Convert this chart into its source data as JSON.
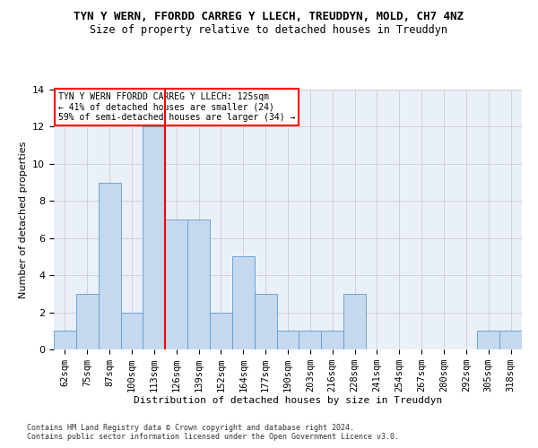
{
  "title": "TYN Y WERN, FFORDD CARREG Y LLECH, TREUDDYN, MOLD, CH7 4NZ",
  "subtitle": "Size of property relative to detached houses in Treuddyn",
  "xlabel": "Distribution of detached houses by size in Treuddyn",
  "ylabel": "Number of detached properties",
  "bar_labels": [
    "62sqm",
    "75sqm",
    "87sqm",
    "100sqm",
    "113sqm",
    "126sqm",
    "139sqm",
    "152sqm",
    "164sqm",
    "177sqm",
    "190sqm",
    "203sqm",
    "216sqm",
    "228sqm",
    "241sqm",
    "254sqm",
    "267sqm",
    "280sqm",
    "292sqm",
    "305sqm",
    "318sqm"
  ],
  "bar_values": [
    1,
    3,
    9,
    2,
    12,
    7,
    7,
    2,
    5,
    3,
    1,
    1,
    1,
    3,
    0,
    0,
    0,
    0,
    0,
    1,
    1
  ],
  "bar_color": "#c5d8ed",
  "bar_edge_color": "#5b9bd5",
  "red_line_x": 4.5,
  "annotation_title": "TYN Y WERN FFORDD CARREG Y LLECH: 125sqm",
  "annotation_line1": "← 41% of detached houses are smaller (24)",
  "annotation_line2": "59% of semi-detached houses are larger (34) →",
  "ylim": [
    0,
    14
  ],
  "yticks": [
    0,
    2,
    4,
    6,
    8,
    10,
    12,
    14
  ],
  "footer1": "Contains HM Land Registry data © Crown copyright and database right 2024.",
  "footer2": "Contains public sector information licensed under the Open Government Licence v3.0.",
  "title_fontsize": 9,
  "subtitle_fontsize": 8.5,
  "ylabel_fontsize": 8,
  "xlabel_fontsize": 8,
  "tick_fontsize": 7.5,
  "annotation_fontsize": 7,
  "footer_fontsize": 6
}
